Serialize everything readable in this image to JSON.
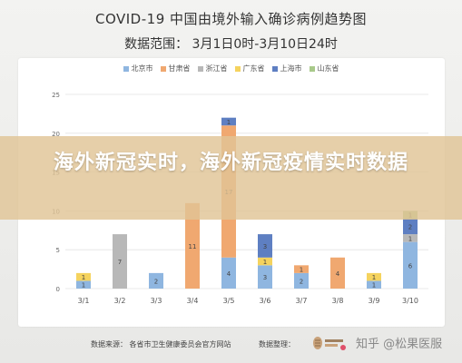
{
  "header": {
    "title": "COVID-19 中国由境外输入确诊病例趋势图",
    "subtitle": "数据范围： 3月1日0时-3月10日24时"
  },
  "banner": {
    "text": "海外新冠实时，海外新冠疫情实时数据"
  },
  "footer": {
    "source": "数据来源： 各省市卫生健康委员会官方网站",
    "organizer": "数据整理：",
    "watermark": "知乎 @松果医服"
  },
  "logo": {
    "icon": "pinecone-logo-icon"
  },
  "chart_data": {
    "type": "bar",
    "stacked": true,
    "title": "COVID-19 中国由境外输入确诊病例趋势图",
    "subtitle": "数据范围： 3月1日0时-3月10日24时",
    "categories": [
      "3/1",
      "3/2",
      "3/3",
      "3/4",
      "3/5",
      "3/6",
      "3/7",
      "3/8",
      "3/9",
      "3/10"
    ],
    "ylim": [
      0,
      25
    ],
    "yticks": [
      0,
      5,
      10,
      15,
      20,
      25
    ],
    "grid": true,
    "legend_position": "top",
    "series": [
      {
        "name": "北京市",
        "color": "#8fb6e0",
        "values": [
          1,
          0,
          2,
          0,
          4,
          3,
          2,
          0,
          1,
          6
        ]
      },
      {
        "name": "甘肃省",
        "color": "#f0a870",
        "values": [
          0,
          0,
          0,
          11,
          17,
          0,
          1,
          4,
          0,
          0
        ]
      },
      {
        "name": "浙江省",
        "color": "#b8b8b8",
        "values": [
          0,
          7,
          0,
          0,
          0,
          0,
          0,
          0,
          0,
          1
        ]
      },
      {
        "name": "广东省",
        "color": "#f5d35e",
        "values": [
          1,
          0,
          0,
          0,
          0,
          1,
          0,
          0,
          1,
          0
        ]
      },
      {
        "name": "上海市",
        "color": "#5e7fc2",
        "values": [
          0,
          0,
          0,
          0,
          1,
          3,
          0,
          0,
          0,
          2
        ]
      },
      {
        "name": "山东省",
        "color": "#a8c98a",
        "values": [
          0,
          0,
          0,
          0,
          0,
          0,
          0,
          0,
          0,
          1
        ]
      }
    ]
  }
}
